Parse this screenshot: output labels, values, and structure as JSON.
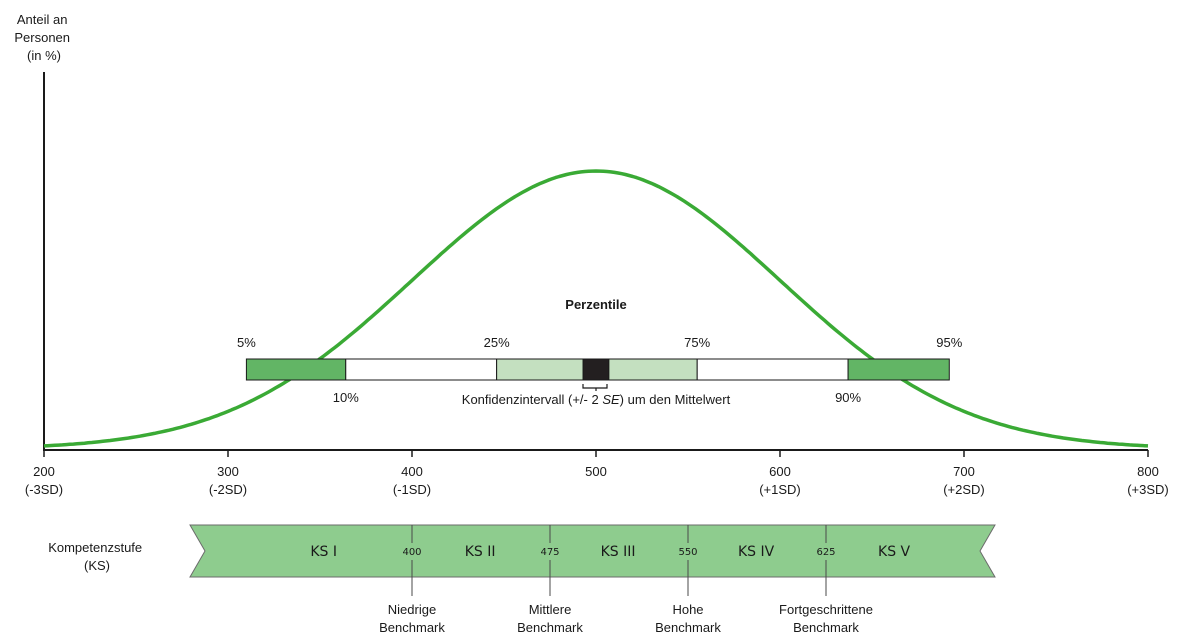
{
  "y_axis_label": [
    "Anteil an",
    "Personen",
    "(in %)"
  ],
  "curve": {
    "type": "normal-distribution",
    "mean": 500,
    "sd": 100,
    "color": "#3aaa35"
  },
  "x_axis": {
    "range": [
      200,
      800
    ],
    "ticks": [
      {
        "value": 200,
        "label": "200",
        "sublabel": "(-3SD)"
      },
      {
        "value": 300,
        "label": "300",
        "sublabel": "(-2SD)"
      },
      {
        "value": 400,
        "label": "400",
        "sublabel": "(-1SD)"
      },
      {
        "value": 500,
        "label": "500",
        "sublabel": ""
      },
      {
        "value": 600,
        "label": "600",
        "sublabel": "(+1SD)"
      },
      {
        "value": 700,
        "label": "700",
        "sublabel": "(+2SD)"
      },
      {
        "value": 800,
        "label": "800",
        "sublabel": "(+3SD)"
      }
    ]
  },
  "percentiles": {
    "title": "Perzentile",
    "ci_label_before": "Konfidenzintervall (+/- 2 ",
    "ci_label_italic": "SE",
    "ci_label_after": ") um den Mittelwert",
    "segments": [
      {
        "from": 310,
        "to": 364,
        "color": "#62b565"
      },
      {
        "from": 364,
        "to": 446,
        "color": "#ffffff"
      },
      {
        "from": 446,
        "to": 493,
        "color": "#c4e0c0"
      },
      {
        "from": 493,
        "to": 507,
        "color": "#231f20"
      },
      {
        "from": 507,
        "to": 555,
        "color": "#c4e0c0"
      },
      {
        "from": 555,
        "to": 637,
        "color": "#ffffff"
      },
      {
        "from": 637,
        "to": 692,
        "color": "#62b565"
      }
    ],
    "top_labels": [
      {
        "value": 310,
        "label": "5%"
      },
      {
        "value": 446,
        "label": "25%"
      },
      {
        "value": 555,
        "label": "75%"
      },
      {
        "value": 692,
        "label": "95%"
      }
    ],
    "bottom_labels": [
      {
        "value": 364,
        "label": "10%"
      },
      {
        "value": 637,
        "label": "90%"
      }
    ]
  },
  "competence": {
    "label": [
      "Kompetenzstufe",
      "(KS)"
    ],
    "color": "#8ecc8e",
    "levels": [
      {
        "label": "KS I",
        "at": 352
      },
      {
        "label": "KS II",
        "at": 437
      },
      {
        "label": "KS III",
        "at": 512
      },
      {
        "label": "KS IV",
        "at": 587
      },
      {
        "label": "KS V",
        "at": 662
      }
    ],
    "cutoffs": [
      {
        "value": 400,
        "label": "400",
        "benchmark": [
          "Niedrige",
          "Benchmark"
        ]
      },
      {
        "value": 475,
        "label": "475",
        "benchmark": [
          "Mittlere",
          "Benchmark"
        ]
      },
      {
        "value": 550,
        "label": "550",
        "benchmark": [
          "Hohe",
          "Benchmark"
        ]
      },
      {
        "value": 625,
        "label": "625",
        "benchmark": [
          "Fortgeschrittene",
          "Benchmark"
        ]
      }
    ]
  }
}
